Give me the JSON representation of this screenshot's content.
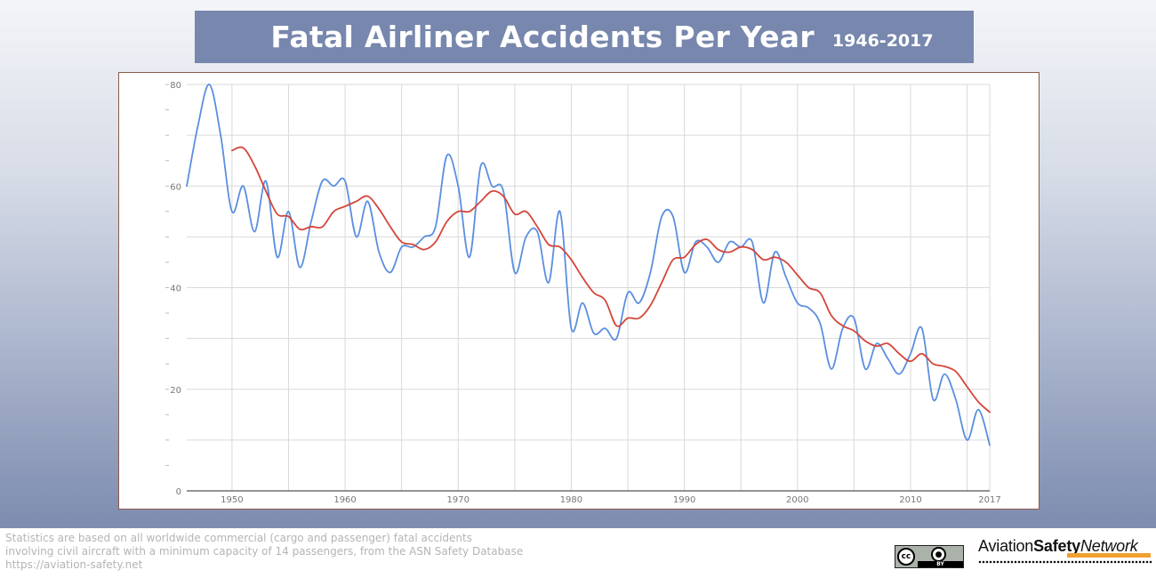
{
  "header": {
    "title": "Fatal Airliner Accidents Per Year",
    "subtitle": "1946-2017"
  },
  "colors": {
    "banner": "#7787ad",
    "actual_series": "#5b8fe0",
    "average_series": "#d5453a",
    "grid": "#d9d9d9"
  },
  "chart_data": {
    "type": "line",
    "title": "Fatal Airliner Accidents Per Year",
    "subtitle": "1946-2017",
    "xlabel": "",
    "ylabel": "",
    "xlim": [
      1946,
      2017
    ],
    "ylim": [
      0,
      80
    ],
    "x_ticks": [
      1950,
      1960,
      1970,
      1980,
      1990,
      2000,
      2010,
      2017
    ],
    "x_tick_labels": [
      "1950",
      "1960",
      "1970",
      "1980",
      "1990",
      "2000",
      "2010",
      "2017"
    ],
    "y_ticks": [
      0,
      20,
      40,
      60,
      80
    ],
    "y_tick_labels": [
      "0",
      "20",
      "40",
      "60",
      "80"
    ],
    "grid": true,
    "legend": "none",
    "series": [
      {
        "color": "#5b8fe0",
        "x": [
          1946,
          1947,
          1948,
          1949,
          1950,
          1951,
          1952,
          1953,
          1954,
          1955,
          1956,
          1957,
          1958,
          1959,
          1960,
          1961,
          1962,
          1963,
          1964,
          1965,
          1966,
          1967,
          1968,
          1969,
          1970,
          1971,
          1972,
          1973,
          1974,
          1975,
          1976,
          1977,
          1978,
          1979,
          1980,
          1981,
          1982,
          1983,
          1984,
          1985,
          1986,
          1987,
          1988,
          1989,
          1990,
          1991,
          1992,
          1993,
          1994,
          1995,
          1996,
          1997,
          1998,
          1999,
          2000,
          2001,
          2002,
          2003,
          2004,
          2005,
          2006,
          2007,
          2008,
          2009,
          2010,
          2011,
          2012,
          2013,
          2014,
          2015,
          2016,
          2017
        ],
        "values": [
          60,
          72,
          80,
          70,
          55,
          60,
          51,
          61,
          46,
          55,
          44,
          53,
          61,
          60,
          61,
          50,
          57,
          47,
          43,
          48,
          48,
          50,
          52,
          66,
          60,
          46,
          64,
          60,
          59,
          43,
          50,
          51,
          41,
          55,
          32,
          37,
          31,
          32,
          30,
          39,
          37,
          43,
          54,
          54,
          43,
          49,
          48,
          45,
          49,
          48,
          49,
          37,
          47,
          42,
          37,
          36,
          33,
          24,
          32,
          34,
          24,
          29,
          26,
          23,
          27,
          32,
          18,
          23,
          18,
          10,
          16,
          9
        ]
      },
      {
        "color": "#d5453a",
        "x": [
          1950,
          1951,
          1952,
          1953,
          1954,
          1955,
          1956,
          1957,
          1958,
          1959,
          1960,
          1961,
          1962,
          1963,
          1964,
          1965,
          1966,
          1967,
          1968,
          1969,
          1970,
          1971,
          1972,
          1973,
          1974,
          1975,
          1976,
          1977,
          1978,
          1979,
          1980,
          1981,
          1982,
          1983,
          1984,
          1985,
          1986,
          1987,
          1988,
          1989,
          1990,
          1991,
          1992,
          1993,
          1994,
          1995,
          1996,
          1997,
          1998,
          1999,
          2000,
          2001,
          2002,
          2003,
          2004,
          2005,
          2006,
          2007,
          2008,
          2009,
          2010,
          2011,
          2012,
          2013,
          2014,
          2015,
          2016,
          2017
        ],
        "values": [
          67,
          67.5,
          64,
          59,
          54.5,
          54,
          51.5,
          52,
          52,
          55,
          56,
          57,
          58,
          55.5,
          52,
          49,
          48.5,
          47.5,
          49,
          53,
          55,
          55,
          57,
          59,
          58,
          54.5,
          55,
          52,
          48.5,
          48,
          45.5,
          42,
          39,
          37.5,
          32.5,
          34,
          34,
          36.5,
          41,
          45.5,
          46,
          48.5,
          49.5,
          47.5,
          47,
          48,
          47.5,
          45.5,
          46,
          45,
          42.5,
          40,
          39,
          34.5,
          32.5,
          31.5,
          29.5,
          28.5,
          29,
          27,
          25.5,
          27,
          25,
          24.5,
          23.5,
          20.5,
          17.5,
          15.5
        ]
      }
    ]
  },
  "footer": {
    "note_line1": "Statistics are based on all worldwide commercial (cargo and passenger) fatal accidents",
    "note_line2": "involving civil aircraft with a minimum capacity of 14 passengers, from the ASN Safety Database",
    "url": "https://aviation-safety.net",
    "license_icon": "cc-by-icon",
    "license_cc": "cc",
    "license_by": "BY",
    "logo_part1": "Aviation",
    "logo_part2": "Safety",
    "logo_part3": "Network"
  }
}
